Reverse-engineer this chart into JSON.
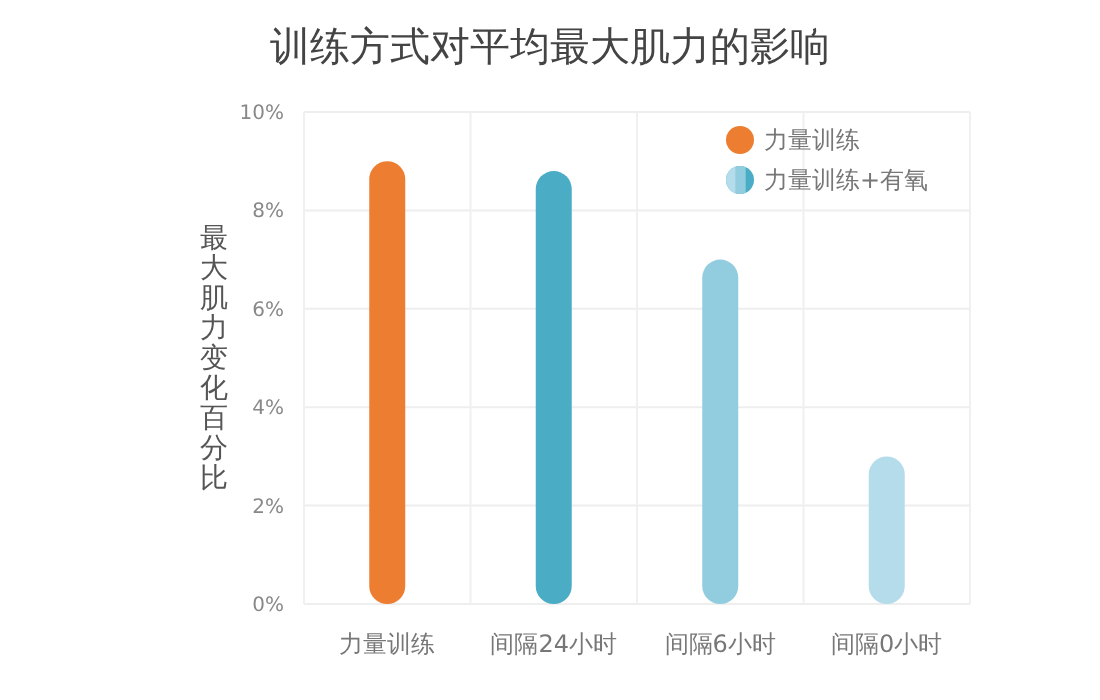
{
  "chart_data": {
    "type": "bar",
    "title": "训练方式对平均最大肌力的影响",
    "ylabel": "最大肌力变化百分比",
    "categories": [
      "力量训练",
      "间隔24小时",
      "间隔6小时",
      "间隔0小时"
    ],
    "series": [
      {
        "name": "力量训练",
        "color": "#ed7d31",
        "values": [
          9.0,
          null,
          null,
          null
        ]
      },
      {
        "name": "力量训练+有氧",
        "color": "#4bacc6",
        "colors": [
          null,
          "#4bacc6",
          "#92cddf",
          "#b4dcea"
        ],
        "values": [
          null,
          8.8,
          7.0,
          3.0
        ]
      }
    ],
    "ylim": [
      0,
      10
    ],
    "yticks": [
      {
        "value": 0,
        "label": "0%"
      },
      {
        "value": 2,
        "label": "2%"
      },
      {
        "value": 4,
        "label": "4%"
      },
      {
        "value": 6,
        "label": "6%"
      },
      {
        "value": 8,
        "label": "8%"
      },
      {
        "value": 10,
        "label": "10%"
      }
    ],
    "grid": true,
    "legend": "top right"
  }
}
